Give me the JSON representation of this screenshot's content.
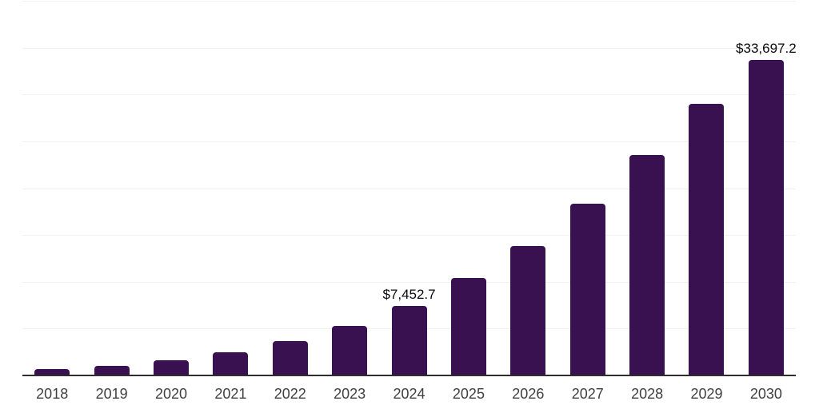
{
  "chart_data": {
    "type": "bar",
    "title": "",
    "xlabel": "",
    "ylabel": "",
    "categories": [
      "2018",
      "2019",
      "2020",
      "2021",
      "2022",
      "2023",
      "2024",
      "2025",
      "2026",
      "2027",
      "2028",
      "2029",
      "2030"
    ],
    "values": [
      700,
      1000,
      1600,
      2500,
      3700,
      5300,
      7452.7,
      10400,
      13800,
      18300,
      23500,
      29000,
      33697.2
    ],
    "data_labels": [
      "",
      "",
      "",
      "",
      "",
      "",
      "$7,452.7",
      "",
      "",
      "",
      "",
      "",
      "$33,697.2"
    ],
    "ylim": [
      0,
      40000
    ],
    "gridline_step": 5000,
    "grid": true,
    "legend": false,
    "colors": {
      "bar": "#3a1150",
      "axis_line": "#2e2e2e",
      "gridline": "#f1f1f3",
      "tick_label": "#3f3f3f",
      "data_label": "#0a0a0a",
      "background": "#ffffff"
    }
  }
}
